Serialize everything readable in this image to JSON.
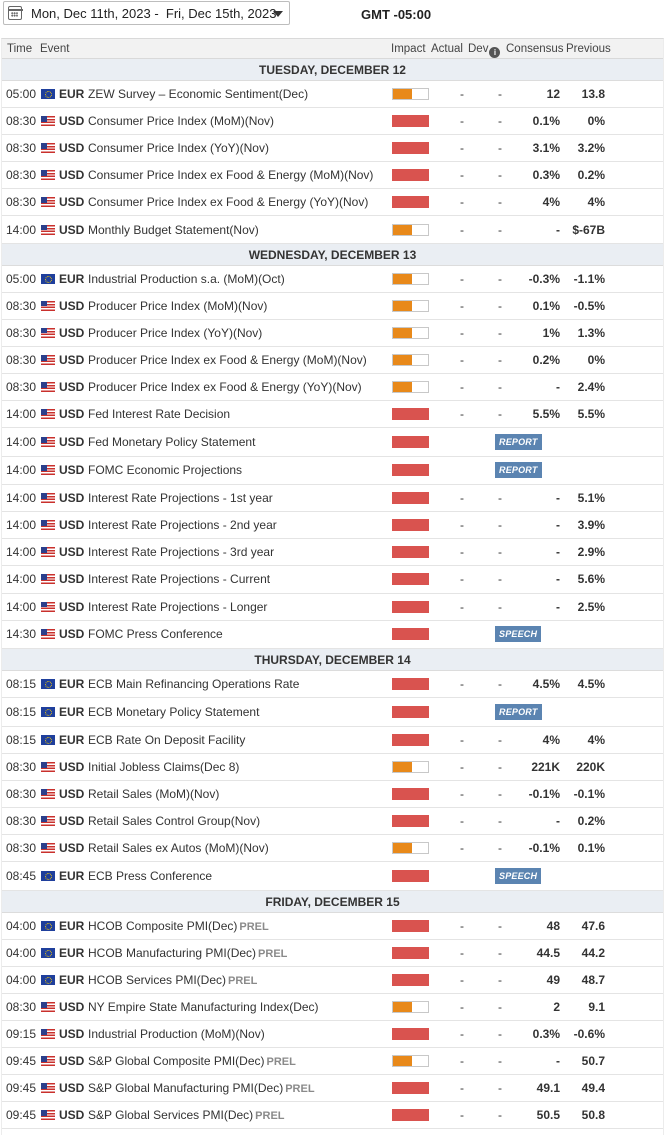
{
  "toolbar": {
    "date_range": "Mon, Dec 11th, 2023 -  Fri, Dec 15th, 2023",
    "timezone": "GMT -05:00"
  },
  "columns": {
    "time": "Time",
    "event": "Event",
    "impact": "Impact",
    "actual": "Actual",
    "dev": "Dev",
    "consensus": "Consensus",
    "previous": "Previous"
  },
  "impact_colors": {
    "medium": "#e8891a",
    "high": "#d9534f"
  },
  "days": [
    {
      "label": "TUESDAY, DECEMBER 12",
      "events": [
        {
          "time": "05:00",
          "flag": "eu",
          "currency": "EUR",
          "name": "ZEW Survey – Economic Sentiment(Dec)",
          "prel": "",
          "impact": "medium",
          "impact_level": 0.55,
          "actual": "-",
          "dev": "-",
          "consensus": "12",
          "previous": "13.8",
          "badge": ""
        },
        {
          "time": "08:30",
          "flag": "us",
          "currency": "USD",
          "name": "Consumer Price Index (MoM)(Nov)",
          "prel": "",
          "impact": "high",
          "impact_level": 1,
          "actual": "-",
          "dev": "-",
          "consensus": "0.1%",
          "previous": "0%",
          "badge": ""
        },
        {
          "time": "08:30",
          "flag": "us",
          "currency": "USD",
          "name": "Consumer Price Index (YoY)(Nov)",
          "prel": "",
          "impact": "high",
          "impact_level": 1,
          "actual": "-",
          "dev": "-",
          "consensus": "3.1%",
          "previous": "3.2%",
          "badge": ""
        },
        {
          "time": "08:30",
          "flag": "us",
          "currency": "USD",
          "name": "Consumer Price Index ex Food & Energy (MoM)(Nov)",
          "prel": "",
          "impact": "high",
          "impact_level": 1,
          "actual": "-",
          "dev": "-",
          "consensus": "0.3%",
          "previous": "0.2%",
          "badge": ""
        },
        {
          "time": "08:30",
          "flag": "us",
          "currency": "USD",
          "name": "Consumer Price Index ex Food & Energy (YoY)(Nov)",
          "prel": "",
          "impact": "high",
          "impact_level": 1,
          "actual": "-",
          "dev": "-",
          "consensus": "4%",
          "previous": "4%",
          "badge": ""
        },
        {
          "time": "14:00",
          "flag": "us",
          "currency": "USD",
          "name": "Monthly Budget Statement(Nov)",
          "prel": "",
          "impact": "medium",
          "impact_level": 0.55,
          "actual": "-",
          "dev": "-",
          "consensus": "-",
          "previous": "$-67B",
          "badge": ""
        }
      ]
    },
    {
      "label": "WEDNESDAY, DECEMBER 13",
      "events": [
        {
          "time": "05:00",
          "flag": "eu",
          "currency": "EUR",
          "name": "Industrial Production s.a. (MoM)(Oct)",
          "prel": "",
          "impact": "medium",
          "impact_level": 0.55,
          "actual": "-",
          "dev": "-",
          "consensus": "-0.3%",
          "previous": "-1.1%",
          "badge": ""
        },
        {
          "time": "08:30",
          "flag": "us",
          "currency": "USD",
          "name": "Producer Price Index (MoM)(Nov)",
          "prel": "",
          "impact": "medium",
          "impact_level": 0.55,
          "actual": "-",
          "dev": "-",
          "consensus": "0.1%",
          "previous": "-0.5%",
          "badge": ""
        },
        {
          "time": "08:30",
          "flag": "us",
          "currency": "USD",
          "name": "Producer Price Index (YoY)(Nov)",
          "prel": "",
          "impact": "medium",
          "impact_level": 0.55,
          "actual": "-",
          "dev": "-",
          "consensus": "1%",
          "previous": "1.3%",
          "badge": ""
        },
        {
          "time": "08:30",
          "flag": "us",
          "currency": "USD",
          "name": "Producer Price Index ex Food & Energy (MoM)(Nov)",
          "prel": "",
          "impact": "medium",
          "impact_level": 0.55,
          "actual": "-",
          "dev": "-",
          "consensus": "0.2%",
          "previous": "0%",
          "badge": ""
        },
        {
          "time": "08:30",
          "flag": "us",
          "currency": "USD",
          "name": "Producer Price Index ex Food & Energy (YoY)(Nov)",
          "prel": "",
          "impact": "medium",
          "impact_level": 0.55,
          "actual": "-",
          "dev": "-",
          "consensus": "-",
          "previous": "2.4%",
          "badge": ""
        },
        {
          "time": "14:00",
          "flag": "us",
          "currency": "USD",
          "name": "Fed Interest Rate Decision",
          "prel": "",
          "impact": "high",
          "impact_level": 1,
          "actual": "-",
          "dev": "-",
          "consensus": "5.5%",
          "previous": "5.5%",
          "badge": ""
        },
        {
          "time": "14:00",
          "flag": "us",
          "currency": "USD",
          "name": "Fed Monetary Policy Statement",
          "prel": "",
          "impact": "high",
          "impact_level": 1,
          "actual": "",
          "dev": "",
          "consensus": "",
          "previous": "",
          "badge": "REPORT"
        },
        {
          "time": "14:00",
          "flag": "us",
          "currency": "USD",
          "name": "FOMC Economic Projections",
          "prel": "",
          "impact": "high",
          "impact_level": 1,
          "actual": "",
          "dev": "",
          "consensus": "",
          "previous": "",
          "badge": "REPORT"
        },
        {
          "time": "14:00",
          "flag": "us",
          "currency": "USD",
          "name": "Interest Rate Projections - 1st year",
          "prel": "",
          "impact": "high",
          "impact_level": 1,
          "actual": "-",
          "dev": "-",
          "consensus": "-",
          "previous": "5.1%",
          "badge": ""
        },
        {
          "time": "14:00",
          "flag": "us",
          "currency": "USD",
          "name": "Interest Rate Projections - 2nd year",
          "prel": "",
          "impact": "high",
          "impact_level": 1,
          "actual": "-",
          "dev": "-",
          "consensus": "-",
          "previous": "3.9%",
          "badge": ""
        },
        {
          "time": "14:00",
          "flag": "us",
          "currency": "USD",
          "name": "Interest Rate Projections - 3rd year",
          "prel": "",
          "impact": "high",
          "impact_level": 1,
          "actual": "-",
          "dev": "-",
          "consensus": "-",
          "previous": "2.9%",
          "badge": ""
        },
        {
          "time": "14:00",
          "flag": "us",
          "currency": "USD",
          "name": "Interest Rate Projections - Current",
          "prel": "",
          "impact": "high",
          "impact_level": 1,
          "actual": "-",
          "dev": "-",
          "consensus": "-",
          "previous": "5.6%",
          "badge": ""
        },
        {
          "time": "14:00",
          "flag": "us",
          "currency": "USD",
          "name": "Interest Rate Projections - Longer",
          "prel": "",
          "impact": "high",
          "impact_level": 1,
          "actual": "-",
          "dev": "-",
          "consensus": "-",
          "previous": "2.5%",
          "badge": ""
        },
        {
          "time": "14:30",
          "flag": "us",
          "currency": "USD",
          "name": "FOMC Press Conference",
          "prel": "",
          "impact": "high",
          "impact_level": 1,
          "actual": "",
          "dev": "",
          "consensus": "",
          "previous": "",
          "badge": "SPEECH"
        }
      ]
    },
    {
      "label": "THURSDAY, DECEMBER 14",
      "events": [
        {
          "time": "08:15",
          "flag": "eu",
          "currency": "EUR",
          "name": "ECB Main Refinancing Operations Rate",
          "prel": "",
          "impact": "high",
          "impact_level": 1,
          "actual": "-",
          "dev": "-",
          "consensus": "4.5%",
          "previous": "4.5%",
          "badge": ""
        },
        {
          "time": "08:15",
          "flag": "eu",
          "currency": "EUR",
          "name": "ECB Monetary Policy Statement",
          "prel": "",
          "impact": "high",
          "impact_level": 1,
          "actual": "",
          "dev": "",
          "consensus": "",
          "previous": "",
          "badge": "REPORT"
        },
        {
          "time": "08:15",
          "flag": "eu",
          "currency": "EUR",
          "name": "ECB Rate On Deposit Facility",
          "prel": "",
          "impact": "high",
          "impact_level": 1,
          "actual": "-",
          "dev": "-",
          "consensus": "4%",
          "previous": "4%",
          "badge": ""
        },
        {
          "time": "08:30",
          "flag": "us",
          "currency": "USD",
          "name": "Initial Jobless Claims(Dec 8)",
          "prel": "",
          "impact": "medium",
          "impact_level": 0.55,
          "actual": "-",
          "dev": "-",
          "consensus": "221K",
          "previous": "220K",
          "badge": ""
        },
        {
          "time": "08:30",
          "flag": "us",
          "currency": "USD",
          "name": "Retail Sales (MoM)(Nov)",
          "prel": "",
          "impact": "high",
          "impact_level": 1,
          "actual": "-",
          "dev": "-",
          "consensus": "-0.1%",
          "previous": "-0.1%",
          "badge": ""
        },
        {
          "time": "08:30",
          "flag": "us",
          "currency": "USD",
          "name": "Retail Sales Control Group(Nov)",
          "prel": "",
          "impact": "high",
          "impact_level": 1,
          "actual": "-",
          "dev": "-",
          "consensus": "-",
          "previous": "0.2%",
          "badge": ""
        },
        {
          "time": "08:30",
          "flag": "us",
          "currency": "USD",
          "name": "Retail Sales ex Autos (MoM)(Nov)",
          "prel": "",
          "impact": "medium",
          "impact_level": 0.55,
          "actual": "-",
          "dev": "-",
          "consensus": "-0.1%",
          "previous": "0.1%",
          "badge": ""
        },
        {
          "time": "08:45",
          "flag": "eu",
          "currency": "EUR",
          "name": "ECB Press Conference",
          "prel": "",
          "impact": "high",
          "impact_level": 1,
          "actual": "",
          "dev": "",
          "consensus": "",
          "previous": "",
          "badge": "SPEECH"
        }
      ]
    },
    {
      "label": "FRIDAY, DECEMBER 15",
      "events": [
        {
          "time": "04:00",
          "flag": "eu",
          "currency": "EUR",
          "name": "HCOB Composite PMI(Dec)",
          "prel": "PREL",
          "impact": "high",
          "impact_level": 1,
          "actual": "-",
          "dev": "-",
          "consensus": "48",
          "previous": "47.6",
          "badge": ""
        },
        {
          "time": "04:00",
          "flag": "eu",
          "currency": "EUR",
          "name": "HCOB Manufacturing PMI(Dec)",
          "prel": "PREL",
          "impact": "high",
          "impact_level": 1,
          "actual": "-",
          "dev": "-",
          "consensus": "44.5",
          "previous": "44.2",
          "badge": ""
        },
        {
          "time": "04:00",
          "flag": "eu",
          "currency": "EUR",
          "name": "HCOB Services PMI(Dec)",
          "prel": "PREL",
          "impact": "high",
          "impact_level": 1,
          "actual": "-",
          "dev": "-",
          "consensus": "49",
          "previous": "48.7",
          "badge": ""
        },
        {
          "time": "08:30",
          "flag": "us",
          "currency": "USD",
          "name": "NY Empire State Manufacturing Index(Dec)",
          "prel": "",
          "impact": "medium",
          "impact_level": 0.55,
          "actual": "-",
          "dev": "-",
          "consensus": "2",
          "previous": "9.1",
          "badge": ""
        },
        {
          "time": "09:15",
          "flag": "us",
          "currency": "USD",
          "name": "Industrial Production (MoM)(Nov)",
          "prel": "",
          "impact": "high",
          "impact_level": 1,
          "actual": "-",
          "dev": "-",
          "consensus": "0.3%",
          "previous": "-0.6%",
          "badge": ""
        },
        {
          "time": "09:45",
          "flag": "us",
          "currency": "USD",
          "name": "S&P Global Composite PMI(Dec)",
          "prel": "PREL",
          "impact": "medium",
          "impact_level": 0.55,
          "actual": "-",
          "dev": "-",
          "consensus": "-",
          "previous": "50.7",
          "badge": ""
        },
        {
          "time": "09:45",
          "flag": "us",
          "currency": "USD",
          "name": "S&P Global Manufacturing PMI(Dec)",
          "prel": "PREL",
          "impact": "high",
          "impact_level": 1,
          "actual": "-",
          "dev": "-",
          "consensus": "49.1",
          "previous": "49.4",
          "badge": ""
        },
        {
          "time": "09:45",
          "flag": "us",
          "currency": "USD",
          "name": "S&P Global Services PMI(Dec)",
          "prel": "PREL",
          "impact": "high",
          "impact_level": 1,
          "actual": "-",
          "dev": "-",
          "consensus": "50.5",
          "previous": "50.8",
          "badge": ""
        }
      ]
    }
  ]
}
